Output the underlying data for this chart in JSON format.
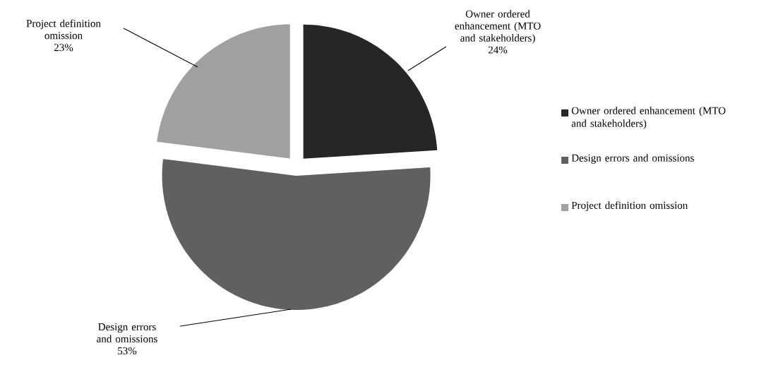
{
  "chart_data": {
    "type": "pie",
    "categories": [
      "Owner ordered enhancement (MTO and stakeholders)",
      "Design errors and omissions",
      "Project definition omission"
    ],
    "values": [
      24,
      53,
      23
    ],
    "value_labels": [
      "24%",
      "53%",
      "23%"
    ],
    "colors": [
      "#262626",
      "#606060",
      "#a0a0a0"
    ],
    "legend": "right"
  }
}
